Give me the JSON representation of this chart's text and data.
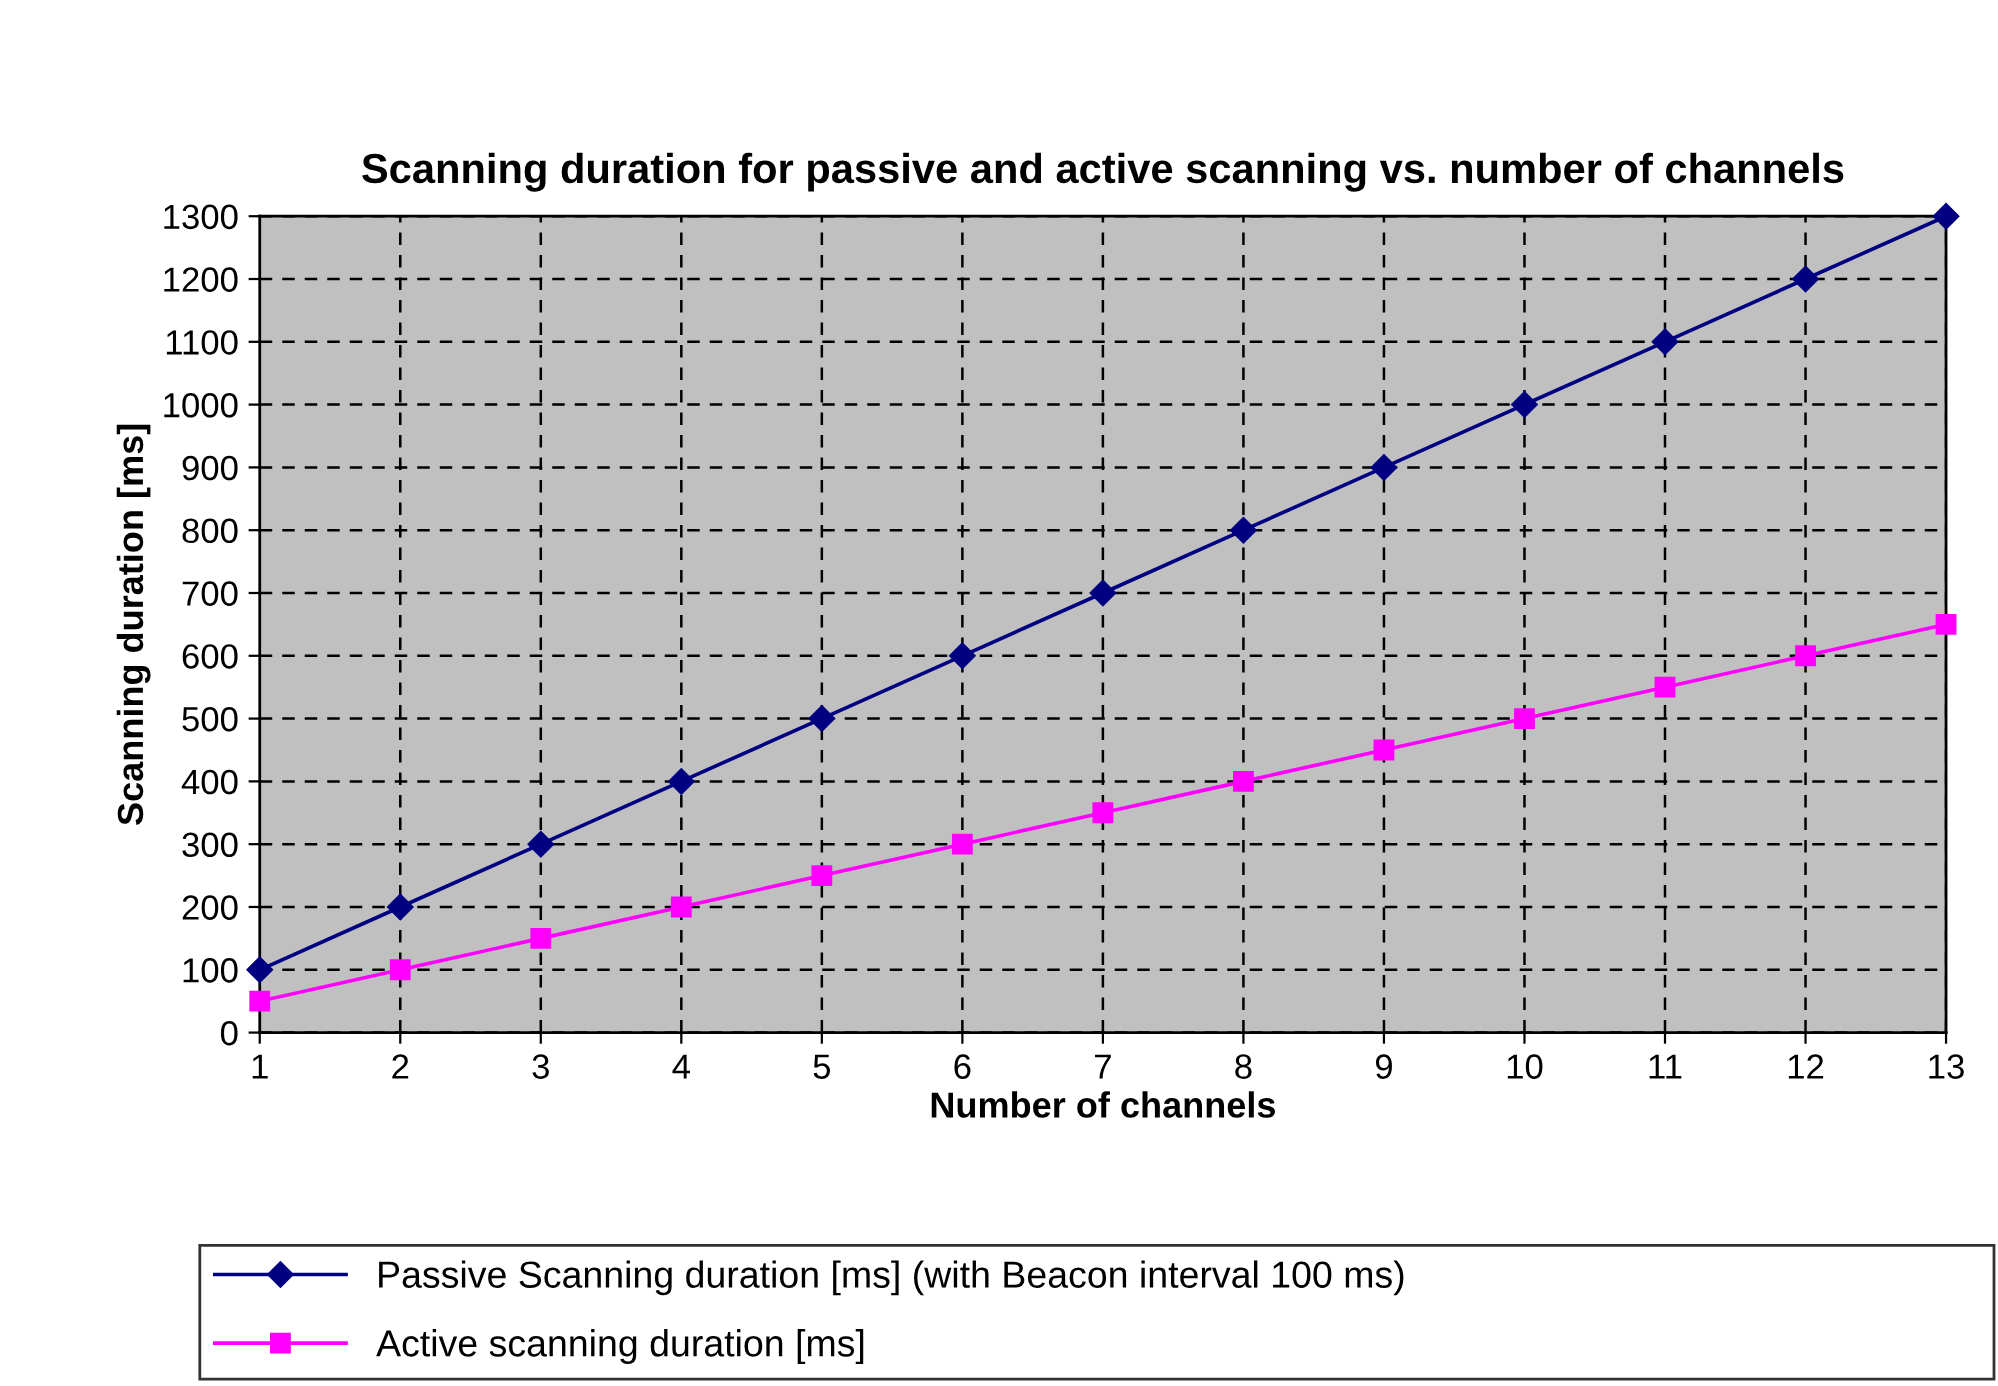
{
  "chart_data": {
    "type": "line",
    "title": "Scanning duration for passive and active scanning vs. number of channels",
    "xlabel": "Number of channels",
    "ylabel": "Scanning duration [ms]",
    "x": [
      1,
      2,
      3,
      4,
      5,
      6,
      7,
      8,
      9,
      10,
      11,
      12,
      13
    ],
    "series": [
      {
        "name": "Passive Scanning duration [ms] (with Beacon interval 100 ms)",
        "color": "#000080",
        "marker": "diamond",
        "values": [
          100,
          200,
          300,
          400,
          500,
          600,
          700,
          800,
          900,
          1000,
          1100,
          1200,
          1300
        ]
      },
      {
        "name": "Active scanning duration [ms]",
        "color": "#ff00ff",
        "marker": "square",
        "values": [
          50,
          100,
          150,
          200,
          250,
          300,
          350,
          400,
          450,
          500,
          550,
          600,
          650
        ]
      }
    ],
    "xlim": [
      1,
      13
    ],
    "xticks": [
      1,
      2,
      3,
      4,
      5,
      6,
      7,
      8,
      9,
      10,
      11,
      12,
      13
    ],
    "ylim": [
      0,
      1300
    ],
    "yticks": [
      0,
      100,
      200,
      300,
      400,
      500,
      600,
      700,
      800,
      900,
      1000,
      1100,
      1200,
      1300
    ],
    "grid": true,
    "line_style": "solid",
    "legend": "bottom"
  }
}
